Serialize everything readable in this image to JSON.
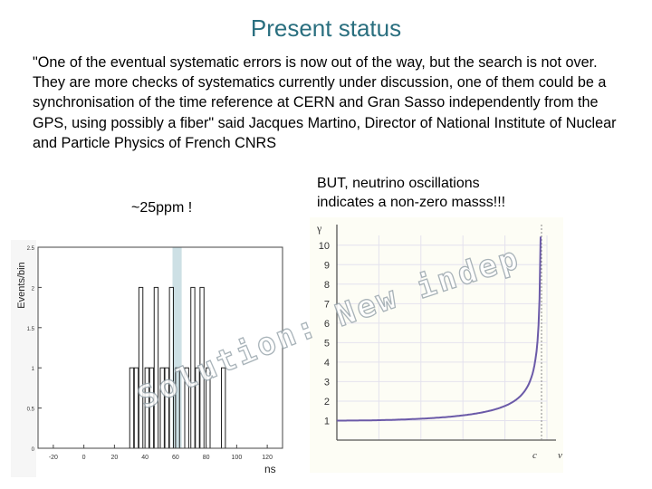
{
  "slide": {
    "title": "Present status",
    "quote": "\"One of the eventual systematic errors is now out of the way, but the search is not over. They are more checks of systematics currently under discussion, one of them could be a synchronisation of the time reference at CERN and Gran Sasso independently from the GPS, using possibly a fiber\" said Jacques Martino, Director of National Institute of Nuclear and Particle Physics of French CNRS",
    "ppm_label": "~25ppm !",
    "but_line1": "BUT, neutrino oscillations",
    "but_line2": "indicates a non-zero masss!!!",
    "solution_text": "Solution: New independent experiment!"
  },
  "chart_data": [
    {
      "type": "bar",
      "ylabel": "Events/bin",
      "xlabel": "ns",
      "x_ticks": [
        "-20",
        "0",
        "20",
        "40",
        "60",
        "80",
        "100",
        "120"
      ],
      "y_ticks": [
        "0",
        "0.5",
        "1",
        "1.5",
        "2",
        "2.5"
      ],
      "xlim": [
        -30,
        130
      ],
      "ylim": [
        0,
        2.5
      ],
      "bins": [
        {
          "x": 30,
          "v": 1
        },
        {
          "x": 33,
          "v": 1
        },
        {
          "x": 36,
          "v": 2
        },
        {
          "x": 40,
          "v": 1
        },
        {
          "x": 43,
          "v": 1
        },
        {
          "x": 46,
          "v": 2
        },
        {
          "x": 50,
          "v": 1
        },
        {
          "x": 53,
          "v": 1
        },
        {
          "x": 56,
          "v": 2
        },
        {
          "x": 60,
          "v": 1
        },
        {
          "x": 66,
          "v": 1
        },
        {
          "x": 70,
          "v": 2
        },
        {
          "x": 73,
          "v": 1
        },
        {
          "x": 76,
          "v": 2
        },
        {
          "x": 80,
          "v": 1
        },
        {
          "x": 90,
          "v": 1
        }
      ],
      "band": [
        58,
        64
      ],
      "band_color": "#bcd6dc"
    },
    {
      "type": "line",
      "ylabel": "γ",
      "xlabel": "v",
      "x_marker": "c",
      "y_ticks": [
        "1",
        "2",
        "3",
        "4",
        "5",
        "6",
        "7",
        "8",
        "9",
        "10"
      ],
      "ylim": [
        0,
        10.5
      ],
      "series_color": "#6b5aa8"
    }
  ]
}
